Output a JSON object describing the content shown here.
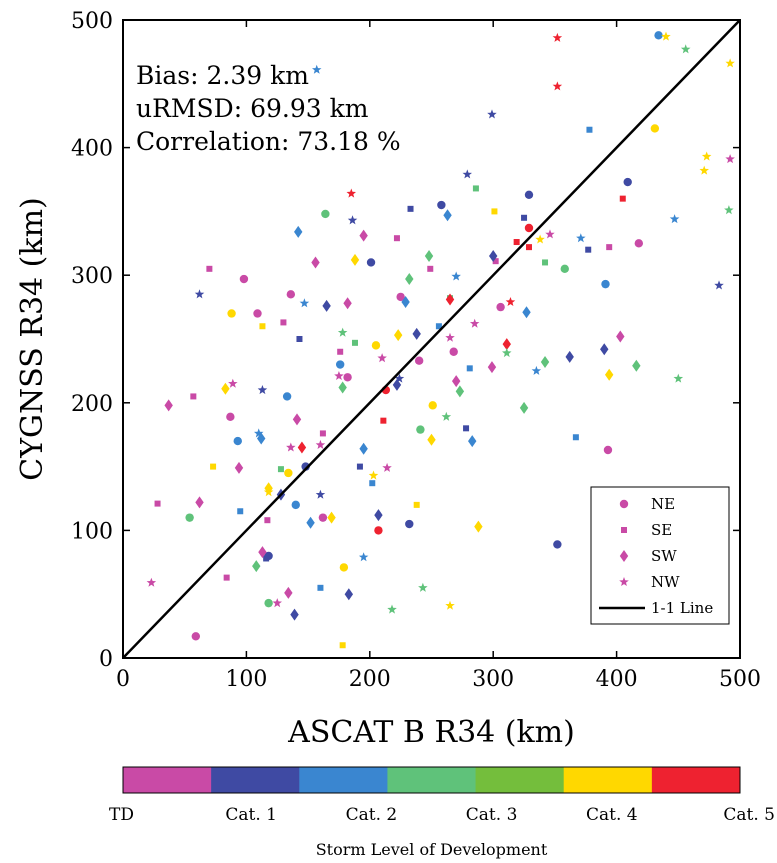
{
  "chart_data": {
    "type": "scatter",
    "xlabel": "ASCAT B R34 (km)",
    "ylabel": "CYGNSS R34 (km)",
    "xlim": [
      0,
      500
    ],
    "ylim": [
      0,
      500
    ],
    "xticks": [
      "0",
      "100",
      "200",
      "300",
      "400",
      "500"
    ],
    "yticks": [
      "0",
      "100",
      "200",
      "300",
      "400",
      "500"
    ],
    "grid": false,
    "stats": {
      "bias": "Bias: 2.39 km",
      "urmsd": "uRMSD: 69.93 km",
      "correlation": "Correlation: 73.18 %"
    },
    "legend": {
      "placement": "bottom-right",
      "entries": [
        "NE",
        "SE",
        "SW",
        "NW",
        "1-1 Line"
      ]
    },
    "reference_line": {
      "name": "1-1 Line",
      "x": [
        0,
        500
      ],
      "y": [
        0,
        500
      ]
    },
    "colorbar": {
      "title": "Storm Level of Development",
      "labels": [
        "TD",
        "Cat. 1",
        "Cat. 2",
        "Cat. 3",
        "Cat. 4",
        "Cat. 5"
      ],
      "colors": [
        "#c94aa6",
        "#3f4aa3",
        "#3a86d0",
        "#5fc27a",
        "#74be3c",
        "#ffd800",
        "#ee2230"
      ]
    },
    "quadrant_markers": {
      "NE": "circle",
      "SE": "square",
      "SW": "diamond",
      "NW": "star"
    },
    "category_colors": {
      "TD": "#c94aa6",
      "Cat1": "#3f4aa3",
      "Cat2": "#3a86d0",
      "Cat3": "#5fc27a",
      "Cat4": "#ffd800",
      "Cat5": "#ee2230"
    },
    "series": [
      {
        "quadrant": "NE",
        "category": "TD",
        "x": [
          98,
          87,
          109,
          136,
          418,
          393,
          225,
          162,
          240,
          59,
          182,
          268,
          306
        ],
        "y": [
          297,
          189,
          270,
          285,
          325,
          163,
          283,
          110,
          233,
          17,
          220,
          240,
          275
        ]
      },
      {
        "quadrant": "NE",
        "category": "Cat1",
        "x": [
          352,
          232,
          329,
          409,
          258,
          148,
          118,
          201
        ],
        "y": [
          89,
          105,
          363,
          373,
          355,
          150,
          80,
          310
        ]
      },
      {
        "quadrant": "NE",
        "category": "Cat2",
        "x": [
          391,
          434,
          140,
          176,
          93,
          133
        ],
        "y": [
          293,
          488,
          120,
          230,
          170,
          205
        ]
      },
      {
        "quadrant": "NE",
        "category": "Cat3",
        "x": [
          54,
          164,
          358,
          241,
          118
        ],
        "y": [
          110,
          348,
          305,
          179,
          43
        ]
      },
      {
        "quadrant": "NE",
        "category": "Cat4",
        "x": [
          431,
          179,
          88,
          134,
          205,
          251
        ],
        "y": [
          415,
          71,
          270,
          145,
          245,
          198
        ]
      },
      {
        "quadrant": "NE",
        "category": "Cat5",
        "x": [
          207,
          329,
          213
        ],
        "y": [
          100,
          337,
          210
        ]
      },
      {
        "quadrant": "SE",
        "category": "TD",
        "x": [
          70,
          57,
          28,
          84,
          130,
          176,
          222,
          117,
          249,
          162,
          302,
          394
        ],
        "y": [
          305,
          205,
          121,
          63,
          263,
          240,
          329,
          108,
          305,
          176,
          311,
          322
        ]
      },
      {
        "quadrant": "SE",
        "category": "Cat1",
        "x": [
          325,
          377,
          116,
          192,
          143,
          233,
          278
        ],
        "y": [
          345,
          320,
          78,
          150,
          250,
          352,
          180
        ]
      },
      {
        "quadrant": "SE",
        "category": "Cat2",
        "x": [
          378,
          367,
          281,
          202,
          95,
          160,
          256
        ],
        "y": [
          414,
          173,
          227,
          137,
          115,
          55,
          260
        ]
      },
      {
        "quadrant": "SE",
        "category": "Cat3",
        "x": [
          265,
          188,
          128,
          286,
          342
        ],
        "y": [
          282,
          247,
          148,
          368,
          310
        ]
      },
      {
        "quadrant": "SE",
        "category": "Cat4",
        "x": [
          113,
          238,
          301,
          178,
          73
        ],
        "y": [
          260,
          120,
          350,
          10,
          150
        ]
      },
      {
        "quadrant": "SE",
        "category": "Cat5",
        "x": [
          405,
          319,
          211,
          329
        ],
        "y": [
          360,
          326,
          186,
          322
        ]
      },
      {
        "quadrant": "SW",
        "category": "TD",
        "x": [
          37,
          403,
          113,
          156,
          195,
          270,
          134,
          62,
          94,
          182,
          299,
          141
        ],
        "y": [
          198,
          252,
          83,
          310,
          331,
          217,
          51,
          122,
          149,
          278,
          228,
          187
        ]
      },
      {
        "quadrant": "SW",
        "category": "Cat1",
        "x": [
          390,
          238,
          362,
          128,
          165,
          300,
          139,
          222,
          183,
          207
        ],
        "y": [
          242,
          254,
          236,
          128,
          276,
          315,
          34,
          214,
          50,
          112
        ]
      },
      {
        "quadrant": "SW",
        "category": "Cat2",
        "x": [
          142,
          229,
          327,
          283,
          112,
          195,
          263,
          152
        ],
        "y": [
          334,
          279,
          271,
          170,
          172,
          164,
          347,
          106
        ]
      },
      {
        "quadrant": "SW",
        "category": "Cat3",
        "x": [
          248,
          178,
          342,
          325,
          416,
          108,
          273,
          232
        ],
        "y": [
          315,
          212,
          232,
          196,
          229,
          72,
          209,
          297
        ]
      },
      {
        "quadrant": "SW",
        "category": "Cat4",
        "x": [
          394,
          188,
          118,
          250,
          169,
          83,
          223,
          288
        ],
        "y": [
          222,
          312,
          133,
          171,
          110,
          211,
          253,
          103
        ]
      },
      {
        "quadrant": "SW",
        "category": "Cat5",
        "x": [
          265,
          311,
          145
        ],
        "y": [
          281,
          246,
          165
        ]
      },
      {
        "quadrant": "NW",
        "category": "TD",
        "x": [
          23,
          160,
          210,
          492,
          346,
          175,
          285,
          125,
          214,
          89,
          265,
          136
        ],
        "y": [
          59,
          167,
          235,
          391,
          332,
          221,
          262,
          43,
          149,
          215,
          251,
          165
        ]
      },
      {
        "quadrant": "NW",
        "category": "Cat1",
        "x": [
          62,
          483,
          299,
          186,
          224,
          113,
          279,
          160
        ],
        "y": [
          285,
          292,
          426,
          343,
          219,
          210,
          379,
          128
        ]
      },
      {
        "quadrant": "NW",
        "category": "Cat2",
        "x": [
          157,
          447,
          371,
          110,
          270,
          195,
          335,
          147
        ],
        "y": [
          461,
          344,
          329,
          176,
          299,
          79,
          225,
          278
        ]
      },
      {
        "quadrant": "NW",
        "category": "Cat3",
        "x": [
          456,
          491,
          450,
          218,
          311,
          243,
          262,
          178
        ],
        "y": [
          477,
          351,
          219,
          38,
          239,
          55,
          189,
          255
        ]
      },
      {
        "quadrant": "NW",
        "category": "Cat4",
        "x": [
          473,
          492,
          471,
          440,
          118,
          265,
          203,
          338
        ],
        "y": [
          393,
          466,
          382,
          487,
          130,
          41,
          143,
          328
        ]
      },
      {
        "quadrant": "NW",
        "category": "Cat5",
        "x": [
          352,
          352,
          185,
          314
        ],
        "y": [
          486,
          448,
          364,
          279
        ]
      }
    ]
  }
}
